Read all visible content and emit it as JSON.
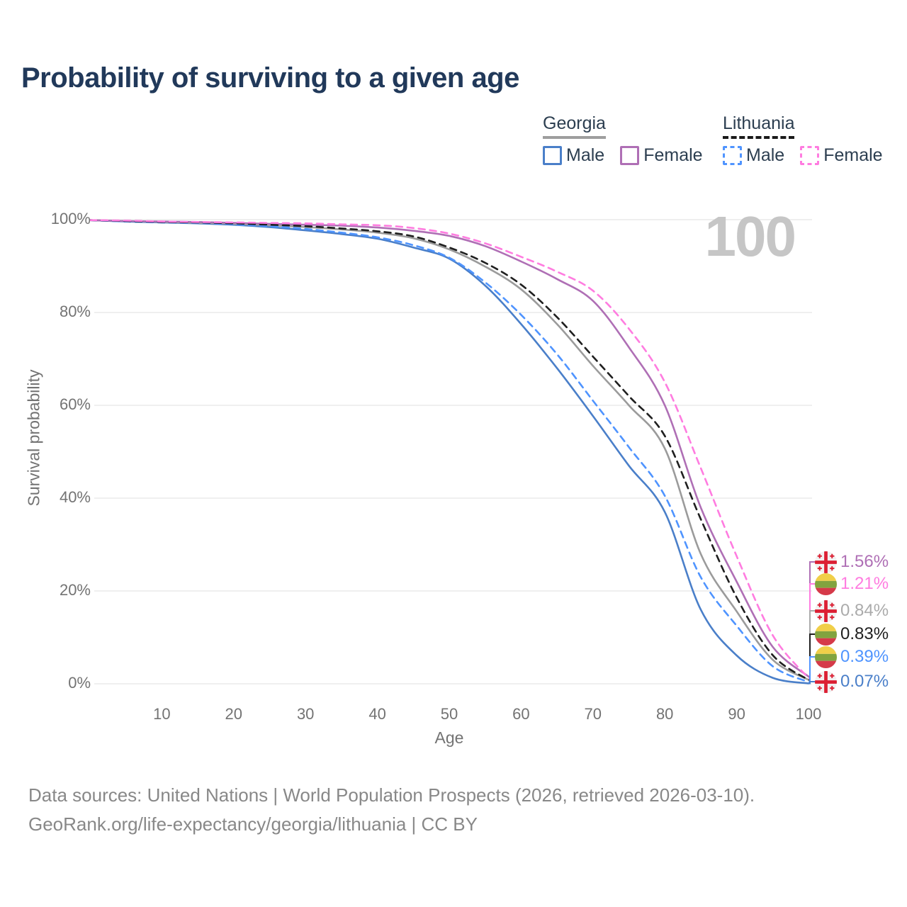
{
  "title": "Probability of surviving to a given age",
  "watermark": "100",
  "legend": {
    "georgia": {
      "label": "Georgia",
      "male": "Male",
      "female": "Female"
    },
    "lithuania": {
      "label": "Lithuania",
      "male": "Male",
      "female": "Female"
    }
  },
  "y_axis": {
    "title": "Survival probability",
    "ticks": [
      {
        "value": 100,
        "label": "100%"
      },
      {
        "value": 80,
        "label": "80%"
      },
      {
        "value": 60,
        "label": "60%"
      },
      {
        "value": 40,
        "label": "40%"
      },
      {
        "value": 20,
        "label": "20%"
      },
      {
        "value": 0,
        "label": "0%"
      }
    ]
  },
  "x_axis": {
    "title": "Age",
    "ticks": [
      {
        "value": 10,
        "label": "10"
      },
      {
        "value": 20,
        "label": "20"
      },
      {
        "value": 30,
        "label": "30"
      },
      {
        "value": 40,
        "label": "40"
      },
      {
        "value": 50,
        "label": "50"
      },
      {
        "value": 60,
        "label": "60"
      },
      {
        "value": 70,
        "label": "70"
      },
      {
        "value": 80,
        "label": "80"
      },
      {
        "value": 90,
        "label": "90"
      },
      {
        "value": 100,
        "label": "100"
      }
    ]
  },
  "end_labels": [
    {
      "series": "Georgia Female",
      "flag": "georgia",
      "value": "1.56%",
      "color": "#af6fb5"
    },
    {
      "series": "Lithuania Female",
      "flag": "lithuania",
      "value": "1.21%",
      "color": "#ff7ce0"
    },
    {
      "series": "Georgia Both sexes",
      "flag": "georgia",
      "value": "0.84%",
      "color": "#ababab"
    },
    {
      "series": "Lithuania Both sexes",
      "flag": "lithuania",
      "value": "0.83%",
      "color": "#1f1f1f"
    },
    {
      "series": "Lithuania Male",
      "flag": "lithuania",
      "value": "0.39%",
      "color": "#4f94ff"
    },
    {
      "series": "Georgia Male",
      "flag": "georgia",
      "value": "0.07%",
      "color": "#4a7fc9"
    }
  ],
  "footer": {
    "line1": "Data sources: United Nations | World Population Prospects (2026, retrieved 2026-03-10).",
    "line2": "GeoRank.org/life-expectancy/georgia/lithuania | CC BY"
  },
  "colors": {
    "grid": "#eaeaea",
    "title_text": "#21395a",
    "axis_text": "#737373",
    "watermark_text": "#c6c6c6"
  },
  "chart_data": {
    "type": "line",
    "title": "Probability of surviving to a given age",
    "xlabel": "Age",
    "ylabel": "Survival probability",
    "xlim": [
      0,
      100
    ],
    "ylim": [
      0,
      100
    ],
    "grid": "horizontal",
    "legend_position": "top-right",
    "x": [
      0,
      5,
      10,
      15,
      20,
      25,
      30,
      35,
      40,
      45,
      50,
      55,
      60,
      65,
      70,
      75,
      80,
      85,
      90,
      95,
      100
    ],
    "series": [
      {
        "name": "Georgia Male",
        "country": "Georgia",
        "sex": "Male",
        "color": "#4a7fc9",
        "dashed": false,
        "values": [
          99.9,
          99.6,
          99.4,
          99.2,
          98.9,
          98.4,
          97.7,
          96.9,
          95.9,
          94.0,
          91.6,
          85.8,
          77.5,
          68.0,
          57.7,
          47.0,
          37.0,
          16.0,
          6.1,
          1.3,
          0.07
        ],
        "end_value_label": "0.07%"
      },
      {
        "name": "Georgia Both sexes",
        "country": "Georgia",
        "sex": "Both",
        "color": "#9b9b9b",
        "dashed": false,
        "values": [
          99.9,
          99.7,
          99.5,
          99.3,
          99.1,
          98.8,
          98.4,
          97.9,
          97.2,
          96.0,
          93.6,
          89.9,
          85.0,
          77.5,
          68.5,
          60.0,
          50.7,
          28.0,
          15.6,
          5.2,
          0.84
        ],
        "end_value_label": "0.84%"
      },
      {
        "name": "Georgia Female",
        "country": "Georgia",
        "sex": "Female",
        "color": "#af6fb5",
        "dashed": false,
        "values": [
          99.9,
          99.7,
          99.6,
          99.5,
          99.3,
          99.1,
          98.9,
          98.7,
          98.3,
          97.6,
          96.5,
          94.3,
          91.0,
          87.2,
          82.5,
          72.5,
          60.0,
          38.0,
          22.0,
          8.0,
          1.56
        ],
        "end_value_label": "1.56%"
      },
      {
        "name": "Lithuania Male",
        "country": "Lithuania",
        "sex": "Male",
        "color": "#4f94ff",
        "dashed": true,
        "values": [
          99.9,
          99.6,
          99.4,
          99.3,
          99.0,
          98.6,
          98.0,
          97.2,
          96.2,
          94.5,
          91.8,
          86.5,
          79.5,
          71.0,
          61.0,
          51.0,
          40.5,
          23.0,
          12.5,
          3.8,
          0.39
        ],
        "end_value_label": "0.39%"
      },
      {
        "name": "Lithuania Both sexes",
        "country": "Lithuania",
        "sex": "Both",
        "color": "#1f1f1f",
        "dashed": true,
        "values": [
          99.9,
          99.7,
          99.5,
          99.4,
          99.2,
          98.9,
          98.6,
          98.1,
          97.5,
          96.4,
          94.0,
          90.7,
          86.0,
          79.0,
          70.5,
          62.0,
          53.4,
          35.5,
          18.6,
          6.2,
          0.83
        ],
        "end_value_label": "0.83%"
      },
      {
        "name": "Lithuania Female",
        "country": "Lithuania",
        "sex": "Female",
        "color": "#ff7ce0",
        "dashed": true,
        "values": [
          99.9,
          99.8,
          99.6,
          99.5,
          99.4,
          99.3,
          99.2,
          99.0,
          98.8,
          98.2,
          97.0,
          94.9,
          92.0,
          88.8,
          84.7,
          76.5,
          65.0,
          46.5,
          27.5,
          10.5,
          1.21
        ],
        "end_value_label": "1.21%"
      }
    ]
  }
}
